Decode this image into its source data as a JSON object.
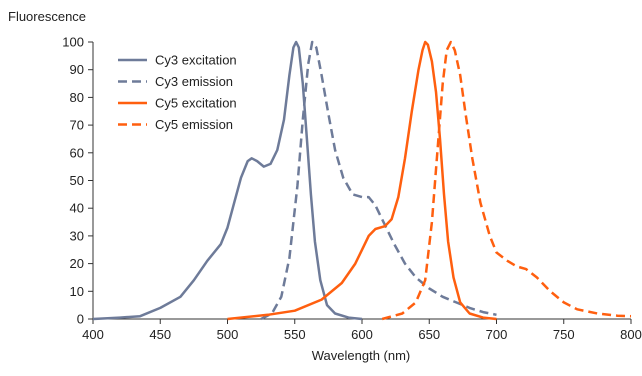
{
  "chart_data": {
    "type": "line",
    "ylabel": "Fluorescence",
    "xlabel": "Wavelength (nm)",
    "xlim": [
      400,
      800
    ],
    "ylim": [
      0,
      100
    ],
    "x_ticks": [
      400,
      450,
      500,
      550,
      600,
      650,
      700,
      750,
      800
    ],
    "y_ticks": [
      0,
      10,
      20,
      30,
      40,
      50,
      60,
      70,
      80,
      90,
      100
    ],
    "grid": false,
    "legend_position": "top-left",
    "series": [
      {
        "name": "Cy3 excitation",
        "color": "#6e7b99",
        "dash": "solid",
        "points": [
          [
            400,
            0
          ],
          [
            420,
            0.5
          ],
          [
            435,
            1
          ],
          [
            450,
            4
          ],
          [
            465,
            8
          ],
          [
            475,
            14
          ],
          [
            485,
            21
          ],
          [
            495,
            27
          ],
          [
            500,
            33
          ],
          [
            505,
            42
          ],
          [
            510,
            51
          ],
          [
            515,
            57
          ],
          [
            518,
            58
          ],
          [
            522,
            57
          ],
          [
            527,
            55
          ],
          [
            532,
            56
          ],
          [
            537,
            61
          ],
          [
            542,
            72
          ],
          [
            546,
            88
          ],
          [
            549,
            98
          ],
          [
            551,
            100
          ],
          [
            553,
            98
          ],
          [
            556,
            85
          ],
          [
            559,
            65
          ],
          [
            562,
            45
          ],
          [
            565,
            28
          ],
          [
            569,
            14
          ],
          [
            574,
            5
          ],
          [
            580,
            2
          ],
          [
            590,
            0.5
          ],
          [
            600,
            0
          ]
        ]
      },
      {
        "name": "Cy3 emission",
        "color": "#6e7b99",
        "dash": "dashed",
        "points": [
          [
            525,
            0
          ],
          [
            533,
            2
          ],
          [
            540,
            8
          ],
          [
            546,
            22
          ],
          [
            552,
            48
          ],
          [
            556,
            72
          ],
          [
            560,
            92
          ],
          [
            563,
            100
          ],
          [
            566,
            98
          ],
          [
            570,
            88
          ],
          [
            575,
            74
          ],
          [
            580,
            61
          ],
          [
            586,
            51
          ],
          [
            593,
            45
          ],
          [
            600,
            44
          ],
          [
            605,
            44
          ],
          [
            610,
            41
          ],
          [
            616,
            35
          ],
          [
            624,
            27
          ],
          [
            632,
            20
          ],
          [
            640,
            15
          ],
          [
            650,
            11
          ],
          [
            660,
            8
          ],
          [
            670,
            6
          ],
          [
            680,
            4
          ],
          [
            690,
            2.5
          ],
          [
            700,
            1.5
          ]
        ]
      },
      {
        "name": "Cy5 excitation",
        "color": "#ff5f0f",
        "dash": "solid",
        "points": [
          [
            500,
            0
          ],
          [
            530,
            1.5
          ],
          [
            550,
            3
          ],
          [
            570,
            7
          ],
          [
            585,
            13
          ],
          [
            595,
            20
          ],
          [
            600,
            25
          ],
          [
            605,
            30
          ],
          [
            610,
            32.5
          ],
          [
            617,
            33.5
          ],
          [
            622,
            36
          ],
          [
            627,
            44
          ],
          [
            632,
            58
          ],
          [
            637,
            75
          ],
          [
            642,
            90
          ],
          [
            645,
            97
          ],
          [
            647,
            100
          ],
          [
            649,
            99
          ],
          [
            652,
            93
          ],
          [
            655,
            82
          ],
          [
            658,
            65
          ],
          [
            661,
            45
          ],
          [
            664,
            28
          ],
          [
            668,
            15
          ],
          [
            673,
            6
          ],
          [
            680,
            2
          ],
          [
            690,
            0.5
          ],
          [
            700,
            0
          ]
        ]
      },
      {
        "name": "Cy5 emission",
        "color": "#ff5f0f",
        "dash": "dashed",
        "points": [
          [
            615,
            0
          ],
          [
            630,
            2
          ],
          [
            640,
            6
          ],
          [
            647,
            14
          ],
          [
            652,
            35
          ],
          [
            656,
            60
          ],
          [
            660,
            85
          ],
          [
            663,
            97
          ],
          [
            666,
            100
          ],
          [
            669,
            97
          ],
          [
            673,
            88
          ],
          [
            677,
            74
          ],
          [
            682,
            58
          ],
          [
            688,
            42
          ],
          [
            695,
            30
          ],
          [
            700,
            24
          ],
          [
            708,
            21
          ],
          [
            715,
            19
          ],
          [
            722,
            18
          ],
          [
            730,
            15
          ],
          [
            740,
            10
          ],
          [
            750,
            6
          ],
          [
            760,
            3.5
          ],
          [
            775,
            2
          ],
          [
            790,
            1.2
          ],
          [
            800,
            1
          ]
        ]
      }
    ]
  }
}
